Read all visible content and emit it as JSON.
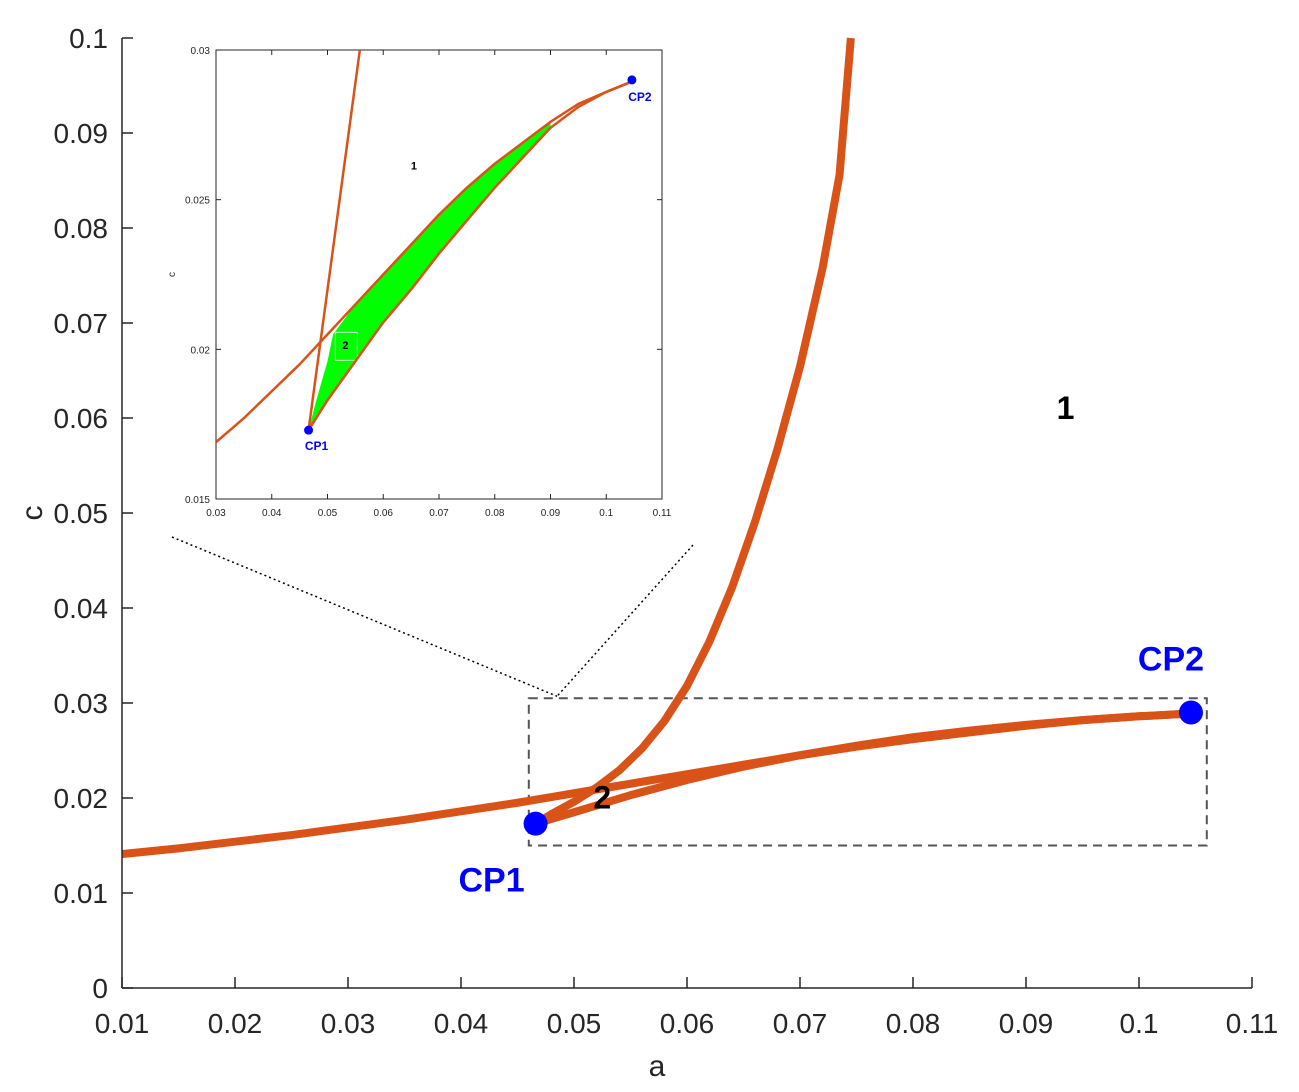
{
  "chart_data": {
    "type": "line",
    "main": {
      "xlabel": "a",
      "ylabel": "c",
      "xlim": [
        0.01,
        0.11
      ],
      "ylim": [
        0,
        0.1
      ],
      "xticks": [
        0.01,
        0.02,
        0.03,
        0.04,
        0.05,
        0.06,
        0.07,
        0.08,
        0.09,
        0.1,
        0.11
      ],
      "xtick_labels": [
        "0.01",
        "0.02",
        "0.03",
        "0.04",
        "0.05",
        "0.06",
        "0.07",
        "0.08",
        "0.09",
        "0.1",
        "0.11"
      ],
      "yticks": [
        0,
        0.01,
        0.02,
        0.03,
        0.04,
        0.05,
        0.06,
        0.07,
        0.08,
        0.09,
        0.1
      ],
      "ytick_labels": [
        "0",
        "0.01",
        "0.02",
        "0.03",
        "0.04",
        "0.05",
        "0.06",
        "0.07",
        "0.08",
        "0.09",
        "0.1"
      ],
      "grid": false,
      "series": [
        {
          "color": "#d95319",
          "x": [
            0.01,
            0.015,
            0.02,
            0.025,
            0.03,
            0.035,
            0.04,
            0.045,
            0.048,
            0.05,
            0.055,
            0.06,
            0.065,
            0.07,
            0.075,
            0.08,
            0.085,
            0.09,
            0.095,
            0.1,
            0.1046
          ],
          "y": [
            0.0141,
            0.0147,
            0.0154,
            0.0161,
            0.0169,
            0.0177,
            0.0186,
            0.0195,
            0.0201,
            0.0205,
            0.0215,
            0.0225,
            0.0235,
            0.0245,
            0.0254,
            0.0262,
            0.0269,
            0.0276,
            0.0282,
            0.0286,
            0.0289
          ]
        },
        {
          "color": "#d95319",
          "x": [
            0.0466,
            0.048,
            0.05,
            0.052,
            0.054,
            0.056,
            0.058,
            0.06,
            0.062,
            0.064,
            0.066,
            0.068,
            0.07,
            0.072,
            0.0735,
            0.0745
          ],
          "y": [
            0.0173,
            0.0183,
            0.0196,
            0.0211,
            0.0229,
            0.0252,
            0.0281,
            0.0318,
            0.0365,
            0.0422,
            0.049,
            0.0567,
            0.0654,
            0.0758,
            0.0856,
            0.1
          ]
        },
        {
          "color": "#d95319",
          "x": [
            0.0466,
            0.05,
            0.055,
            0.06,
            0.065,
            0.07,
            0.075,
            0.08,
            0.085,
            0.09,
            0.095,
            0.1,
            0.1046
          ],
          "y": [
            0.0173,
            0.0185,
            0.0203,
            0.0219,
            0.0233,
            0.0245,
            0.0255,
            0.0264,
            0.0271,
            0.0277,
            0.0282,
            0.0286,
            0.0289
          ]
        }
      ],
      "points": [
        {
          "label": "CP1",
          "x": 0.0466,
          "y": 0.0173,
          "color": "#0000ff"
        },
        {
          "label": "CP2",
          "x": 0.1046,
          "y": 0.029,
          "color": "#0000ff"
        }
      ],
      "regions": [
        {
          "label": "1",
          "x": 0.0935,
          "y": 0.0608
        },
        {
          "label": "2",
          "x": 0.0525,
          "y": 0.0198
        }
      ],
      "zoom_box": {
        "xlim": [
          0.046,
          0.106
        ],
        "ylim": [
          0.015,
          0.0305
        ]
      }
    },
    "inset": {
      "xlim": [
        0.03,
        0.11
      ],
      "ylim": [
        0.015,
        0.03
      ],
      "ylabel": "c",
      "xticks": [
        0.03,
        0.04,
        0.05,
        0.06,
        0.07,
        0.08,
        0.09,
        0.1,
        0.11
      ],
      "xtick_labels": [
        "0.03",
        "0.04",
        "0.05",
        "0.06",
        "0.07",
        "0.08",
        "0.09",
        "0.1",
        "0.11"
      ],
      "yticks": [
        0.015,
        0.02,
        0.025,
        0.03
      ],
      "ytick_labels": [
        "0.015",
        "0.02",
        "0.025",
        "0.03"
      ],
      "fill_color": "#00ff00",
      "series": [
        {
          "color": "#d95319",
          "x": [
            0.03,
            0.035,
            0.04,
            0.045,
            0.05,
            0.055,
            0.06,
            0.065,
            0.07,
            0.075,
            0.08,
            0.085,
            0.09,
            0.095,
            0.1,
            0.104
          ],
          "y": [
            0.0169,
            0.0177,
            0.0186,
            0.0195,
            0.0205,
            0.0215,
            0.0225,
            0.0235,
            0.0245,
            0.0254,
            0.0262,
            0.0269,
            0.0276,
            0.0282,
            0.0286,
            0.0289
          ]
        },
        {
          "color": "#d95319",
          "x": [
            0.0466,
            0.048,
            0.05,
            0.052,
            0.054,
            0.056
          ],
          "y": [
            0.0173,
            0.0183,
            0.0196,
            0.0211,
            0.0229,
            0.0252
          ]
        },
        {
          "color": "#d95319",
          "x": [
            0.0466,
            0.05,
            0.055,
            0.06,
            0.065,
            0.07,
            0.075,
            0.08,
            0.085,
            0.09,
            0.095,
            0.1,
            0.104
          ],
          "y": [
            0.0173,
            0.0183,
            0.0196,
            0.0209,
            0.022,
            0.0232,
            0.0243,
            0.0254,
            0.0264,
            0.0274,
            0.0281,
            0.0286,
            0.0289
          ]
        }
      ],
      "points": [
        {
          "label": "CP1",
          "x": 0.0466,
          "y": 0.0173,
          "color": "#0000ff"
        },
        {
          "label": "CP2",
          "x": 0.1046,
          "y": 0.029,
          "color": "#0000ff"
        }
      ],
      "regions": [
        {
          "label": "1",
          "x": 0.0655,
          "y": 0.0261
        },
        {
          "label": "2",
          "x": 0.0532,
          "y": 0.0201
        }
      ]
    }
  }
}
